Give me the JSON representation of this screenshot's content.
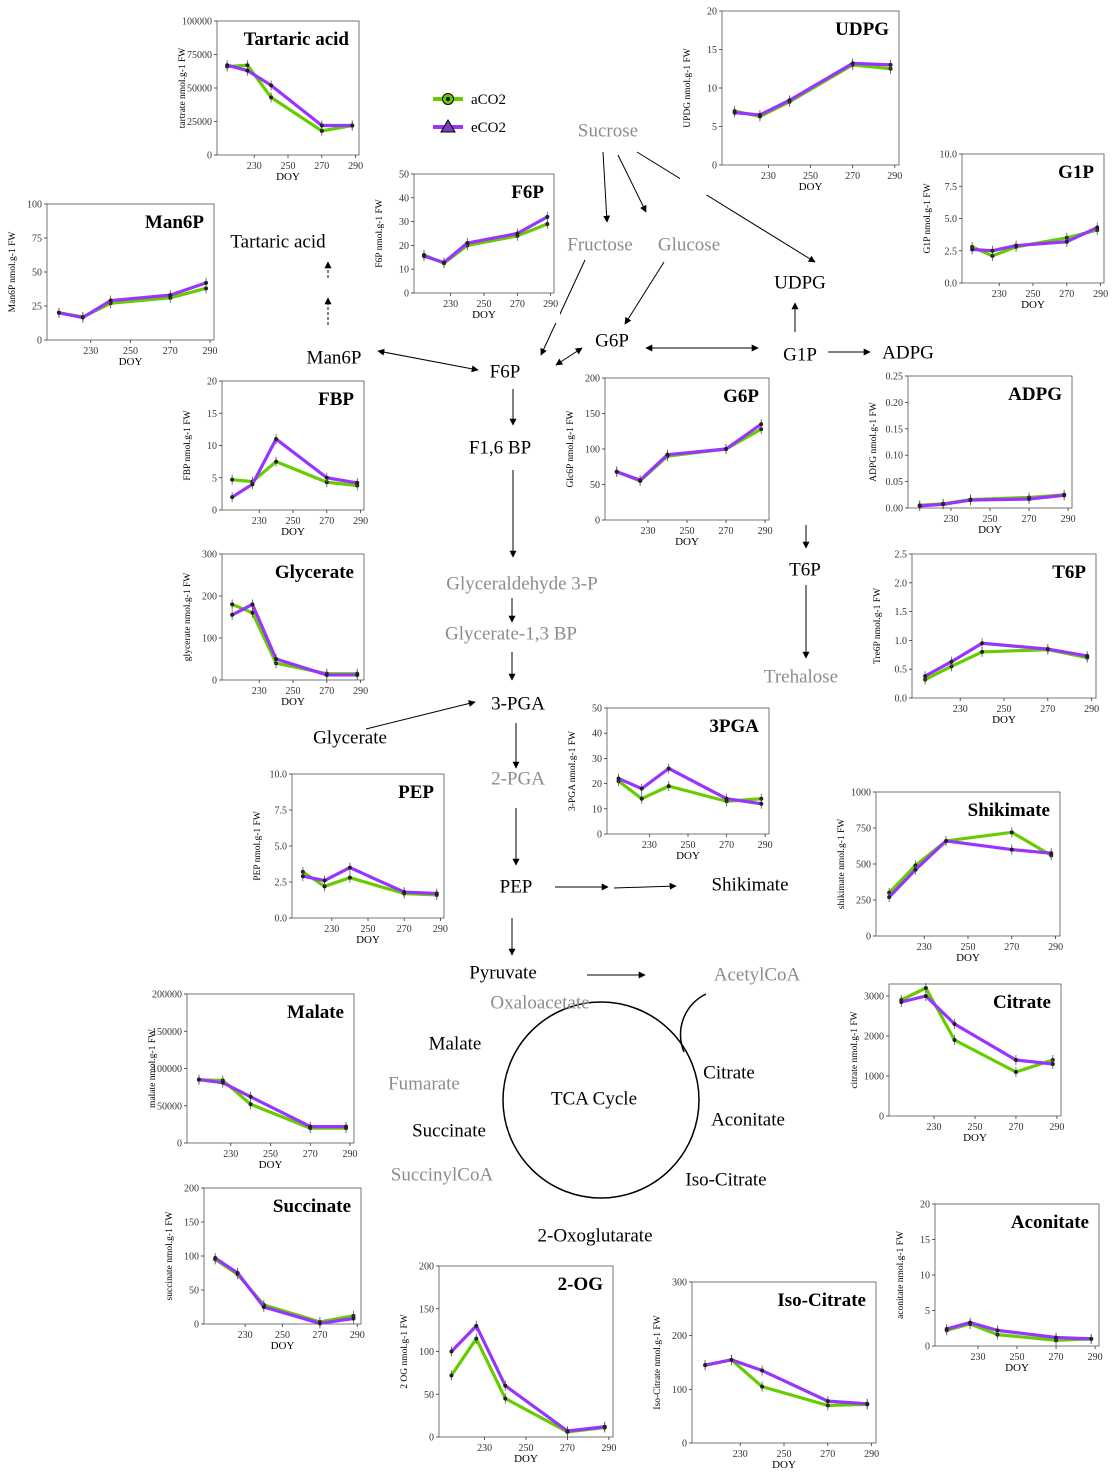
{
  "colors": {
    "aCO2": "#66cc00",
    "eCO2": "#9933ff",
    "dark_text": "#000000",
    "grey_text": "#8c8c8c"
  },
  "legend": [
    {
      "label": "aCO2",
      "color": "#66cc00",
      "marker": "circle"
    },
    {
      "label": "eCO2",
      "color": "#9933ff",
      "marker": "triangle"
    }
  ],
  "pathway": {
    "nodes": [
      {
        "id": "sucrose",
        "label": "Sucrose",
        "tone": "grey"
      },
      {
        "id": "fructose",
        "label": "Fructose",
        "tone": "grey"
      },
      {
        "id": "glucose",
        "label": "Glucose",
        "tone": "grey"
      },
      {
        "id": "udpg",
        "label": "UDPG",
        "tone": "dark"
      },
      {
        "id": "tartaric",
        "label": "Tartaric acid",
        "tone": "dark"
      },
      {
        "id": "man6p",
        "label": "Man6P",
        "tone": "dark"
      },
      {
        "id": "f6p",
        "label": "F6P",
        "tone": "dark"
      },
      {
        "id": "g6p",
        "label": "G6P",
        "tone": "dark"
      },
      {
        "id": "g1p",
        "label": "G1P",
        "tone": "dark"
      },
      {
        "id": "adpg",
        "label": "ADPG",
        "tone": "dark"
      },
      {
        "id": "f16bp",
        "label": "F1,6 BP",
        "tone": "dark"
      },
      {
        "id": "t6p",
        "label": "T6P",
        "tone": "dark"
      },
      {
        "id": "trehalose",
        "label": "Trehalose",
        "tone": "grey"
      },
      {
        "id": "g3p",
        "label": "Glyceraldehyde 3-P",
        "tone": "grey"
      },
      {
        "id": "g13bp",
        "label": "Glycerate-1,3 BP",
        "tone": "grey"
      },
      {
        "id": "pga3",
        "label": "3-PGA",
        "tone": "dark"
      },
      {
        "id": "glycerate",
        "label": "Glycerate",
        "tone": "dark"
      },
      {
        "id": "pga2",
        "label": "2-PGA",
        "tone": "grey"
      },
      {
        "id": "pep",
        "label": "PEP",
        "tone": "dark"
      },
      {
        "id": "shikimate",
        "label": "Shikimate",
        "tone": "dark"
      },
      {
        "id": "pyruvate",
        "label": "Pyruvate",
        "tone": "dark"
      },
      {
        "id": "acetylcoa",
        "label": "AcetylCoA",
        "tone": "grey"
      },
      {
        "id": "oxaloacetate",
        "label": "Oxaloacetate",
        "tone": "grey"
      },
      {
        "id": "malate",
        "label": "Malate",
        "tone": "dark"
      },
      {
        "id": "fumarate",
        "label": "Fumarate",
        "tone": "grey"
      },
      {
        "id": "tca",
        "label": "TCA Cycle",
        "tone": "dark"
      },
      {
        "id": "citrate",
        "label": "Citrate",
        "tone": "dark"
      },
      {
        "id": "aconitate",
        "label": "Aconitate",
        "tone": "dark"
      },
      {
        "id": "succinate",
        "label": "Succinate",
        "tone": "dark"
      },
      {
        "id": "succinylcoa",
        "label": "SuccinylCoA",
        "tone": "grey"
      },
      {
        "id": "isocitrate",
        "label": "Iso-Citrate",
        "tone": "dark"
      },
      {
        "id": "oxoglutarate",
        "label": "2-Oxoglutarate",
        "tone": "dark"
      }
    ]
  },
  "chart_data": [
    {
      "id": "tartaric",
      "type": "line",
      "title": "Tartaric acid",
      "ylabel": "tartrate nmol.g-1 FW",
      "xlabel": "DOY",
      "x": [
        214,
        226,
        240,
        270,
        288
      ],
      "xticks": [
        230,
        250,
        270,
        290
      ],
      "xlim": [
        208,
        292
      ],
      "yticks": [
        0,
        25000,
        50000,
        75000,
        100000
      ],
      "ylim": [
        0,
        100000
      ],
      "series": [
        {
          "name": "aCO2",
          "values": [
            66000,
            67000,
            43000,
            18000,
            22000
          ]
        },
        {
          "name": "eCO2",
          "values": [
            67000,
            63000,
            52000,
            22000,
            22000
          ]
        }
      ]
    },
    {
      "id": "udpg",
      "type": "line",
      "title": "UDPG",
      "ylabel": "UPDG nmol.g-1 FW",
      "xlabel": "DOY",
      "x": [
        214,
        226,
        240,
        270,
        288
      ],
      "xticks": [
        230,
        250,
        270,
        290
      ],
      "xlim": [
        208,
        292
      ],
      "yticks": [
        0,
        5,
        10,
        15,
        20
      ],
      "ylim": [
        0,
        20
      ],
      "series": [
        {
          "name": "aCO2",
          "values": [
            7,
            6.3,
            8.2,
            13,
            12.5
          ]
        },
        {
          "name": "eCO2",
          "values": [
            6.8,
            6.5,
            8.4,
            13.2,
            13
          ]
        }
      ]
    },
    {
      "id": "f6p",
      "type": "line",
      "title": "F6P",
      "ylabel": "F6P nmol.g-1 FW",
      "xlabel": "DOY",
      "x": [
        214,
        226,
        240,
        270,
        288
      ],
      "xticks": [
        230,
        250,
        270,
        290
      ],
      "xlim": [
        208,
        292
      ],
      "yticks": [
        0,
        10,
        20,
        30,
        40,
        50
      ],
      "ylim": [
        0,
        50
      ],
      "series": [
        {
          "name": "aCO2",
          "values": [
            16,
            12.5,
            20,
            24,
            29
          ]
        },
        {
          "name": "eCO2",
          "values": [
            15.5,
            12.8,
            21,
            25,
            32
          ]
        }
      ]
    },
    {
      "id": "g1p",
      "type": "line",
      "title": "G1P",
      "ylabel": "G1P nmol.g-1 FW",
      "xlabel": "DOY",
      "x": [
        214,
        226,
        240,
        270,
        288
      ],
      "xticks": [
        230,
        250,
        270,
        290
      ],
      "xlim": [
        208,
        292
      ],
      "yticks": [
        0.0,
        2.5,
        5.0,
        7.5,
        10.0
      ],
      "ylim": [
        0,
        10
      ],
      "series": [
        {
          "name": "aCO2",
          "values": [
            2.8,
            2.1,
            2.8,
            3.5,
            4.1
          ]
        },
        {
          "name": "eCO2",
          "values": [
            2.6,
            2.5,
            2.9,
            3.2,
            4.3
          ]
        }
      ]
    },
    {
      "id": "man6p",
      "type": "line",
      "title": "Man6P",
      "ylabel": "Man6P nmol.g-1 FW",
      "xlabel": "DOY",
      "x": [
        214,
        226,
        240,
        270,
        288
      ],
      "xticks": [
        230,
        250,
        270,
        290
      ],
      "xlim": [
        208,
        292
      ],
      "yticks": [
        0,
        25,
        50,
        75,
        100
      ],
      "ylim": [
        0,
        100
      ],
      "series": [
        {
          "name": "aCO2",
          "values": [
            20,
            17,
            27,
            31,
            38
          ]
        },
        {
          "name": "eCO2",
          "values": [
            20,
            16.5,
            29,
            33,
            42
          ]
        }
      ]
    },
    {
      "id": "fbp",
      "type": "line",
      "title": "FBP",
      "ylabel": "FBP nmol.g-1 FW",
      "xlabel": "DOY",
      "x": [
        214,
        226,
        240,
        270,
        288
      ],
      "xticks": [
        230,
        250,
        270,
        290
      ],
      "xlim": [
        208,
        292
      ],
      "yticks": [
        0,
        5,
        10,
        15,
        20
      ],
      "ylim": [
        0,
        20
      ],
      "series": [
        {
          "name": "aCO2",
          "values": [
            4.7,
            4.4,
            7.5,
            4.3,
            3.8
          ]
        },
        {
          "name": "eCO2",
          "values": [
            2.0,
            4.0,
            11.0,
            5.0,
            4.2
          ]
        }
      ]
    },
    {
      "id": "g6p",
      "type": "line",
      "title": "G6P",
      "ylabel": "Glc6P nmol.g-1 FW",
      "xlabel": "DOY",
      "x": [
        214,
        226,
        240,
        270,
        288
      ],
      "xticks": [
        230,
        250,
        270,
        290
      ],
      "xlim": [
        208,
        292
      ],
      "yticks": [
        0,
        50,
        100,
        150,
        200
      ],
      "ylim": [
        0,
        200
      ],
      "series": [
        {
          "name": "aCO2",
          "values": [
            68,
            55,
            90,
            100,
            128
          ]
        },
        {
          "name": "eCO2",
          "values": [
            68,
            56,
            92,
            100,
            135
          ]
        }
      ]
    },
    {
      "id": "adpg",
      "type": "line",
      "title": "ADPG",
      "ylabel": "ADPG nmol.g-1 FW",
      "xlabel": "DOY",
      "x": [
        214,
        226,
        240,
        270,
        288
      ],
      "xticks": [
        230,
        250,
        270,
        290
      ],
      "xlim": [
        208,
        292
      ],
      "yticks": [
        0.0,
        0.05,
        0.1,
        0.15,
        0.2,
        0.25
      ],
      "ylim": [
        0,
        0.25
      ],
      "series": [
        {
          "name": "aCO2",
          "values": [
            0.005,
            0.008,
            0.016,
            0.02,
            0.025
          ]
        },
        {
          "name": "eCO2",
          "values": [
            0.004,
            0.007,
            0.015,
            0.017,
            0.024
          ]
        }
      ]
    },
    {
      "id": "glycerate",
      "type": "line",
      "title": "Glycerate",
      "ylabel": "glycerate nmol.g-1 FW",
      "xlabel": "DOY",
      "x": [
        214,
        226,
        240,
        270,
        288
      ],
      "xticks": [
        230,
        250,
        270,
        290
      ],
      "xlim": [
        208,
        292
      ],
      "yticks": [
        0,
        100,
        200,
        300
      ],
      "ylim": [
        0,
        300
      ],
      "series": [
        {
          "name": "aCO2",
          "values": [
            180,
            160,
            40,
            15,
            15
          ]
        },
        {
          "name": "eCO2",
          "values": [
            155,
            180,
            50,
            12,
            12
          ]
        }
      ]
    },
    {
      "id": "t6p",
      "type": "line",
      "title": "T6P",
      "ylabel": "Tre6P nmol.g-1 FW",
      "xlabel": "DOY",
      "x": [
        214,
        226,
        240,
        270,
        288
      ],
      "xticks": [
        230,
        250,
        270,
        290
      ],
      "xlim": [
        208,
        292
      ],
      "yticks": [
        0.0,
        0.5,
        1.0,
        1.5,
        2.0,
        2.5
      ],
      "ylim": [
        0,
        2.5
      ],
      "series": [
        {
          "name": "aCO2",
          "values": [
            0.32,
            0.55,
            0.8,
            0.84,
            0.7
          ]
        },
        {
          "name": "eCO2",
          "values": [
            0.38,
            0.63,
            0.95,
            0.85,
            0.73
          ]
        }
      ]
    },
    {
      "id": "pep",
      "type": "line",
      "title": "PEP",
      "ylabel": "PEP nmol.g-1 FW",
      "xlabel": "DOY",
      "x": [
        214,
        226,
        240,
        270,
        288
      ],
      "xticks": [
        230,
        250,
        270,
        290
      ],
      "xlim": [
        208,
        292
      ],
      "yticks": [
        0.0,
        2.5,
        5.0,
        7.5,
        10.0
      ],
      "ylim": [
        0,
        10
      ],
      "series": [
        {
          "name": "aCO2",
          "values": [
            3.2,
            2.2,
            2.8,
            1.7,
            1.6
          ]
        },
        {
          "name": "eCO2",
          "values": [
            2.9,
            2.6,
            3.5,
            1.8,
            1.7
          ]
        }
      ]
    },
    {
      "id": "pga3",
      "type": "line",
      "title": "3PGA",
      "ylabel": "3-PGA nmol.g-1 FW",
      "xlabel": "DOY",
      "x": [
        214,
        226,
        240,
        270,
        288
      ],
      "xticks": [
        230,
        250,
        270,
        290
      ],
      "xlim": [
        208,
        292
      ],
      "yticks": [
        0,
        10,
        20,
        30,
        40,
        50
      ],
      "ylim": [
        0,
        50
      ],
      "series": [
        {
          "name": "aCO2",
          "values": [
            21,
            14,
            19,
            13,
            14
          ]
        },
        {
          "name": "eCO2",
          "values": [
            22,
            18,
            26,
            14,
            12
          ]
        }
      ]
    },
    {
      "id": "shikimate",
      "type": "line",
      "title": "Shikimate",
      "ylabel": "shikimate nmol.g-1 FW",
      "xlabel": "DOY",
      "x": [
        214,
        226,
        240,
        270,
        288
      ],
      "xticks": [
        230,
        250,
        270,
        290
      ],
      "xlim": [
        208,
        292
      ],
      "yticks": [
        0,
        250,
        500,
        750,
        1000
      ],
      "ylim": [
        0,
        1000
      ],
      "series": [
        {
          "name": "aCO2",
          "values": [
            300,
            490,
            660,
            720,
            560
          ]
        },
        {
          "name": "eCO2",
          "values": [
            270,
            460,
            660,
            600,
            575
          ]
        }
      ]
    },
    {
      "id": "malate",
      "type": "line",
      "title": "Malate",
      "ylabel": "malate nmol.g-1 FW",
      "xlabel": "DOY",
      "x": [
        214,
        226,
        240,
        270,
        288
      ],
      "xticks": [
        230,
        250,
        270,
        290
      ],
      "xlim": [
        208,
        292
      ],
      "yticks": [
        0,
        50000,
        100000,
        150000,
        200000
      ],
      "ylim": [
        0,
        200000
      ],
      "series": [
        {
          "name": "aCO2",
          "values": [
            85000,
            84000,
            52000,
            20000,
            20000
          ]
        },
        {
          "name": "eCO2",
          "values": [
            85000,
            81000,
            62000,
            22000,
            22000
          ]
        }
      ]
    },
    {
      "id": "citrate",
      "type": "line",
      "title": "Citrate",
      "ylabel": "citrate nmol.g-1 FW",
      "xlabel": "DOY",
      "x": [
        214,
        226,
        240,
        270,
        288
      ],
      "xticks": [
        230,
        250,
        270,
        290
      ],
      "xlim": [
        208,
        292
      ],
      "yticks": [
        0,
        1000,
        2000,
        3000
      ],
      "ylim": [
        0,
        3300
      ],
      "series": [
        {
          "name": "aCO2",
          "values": [
            2900,
            3200,
            1900,
            1100,
            1400
          ]
        },
        {
          "name": "eCO2",
          "values": [
            2850,
            3000,
            2300,
            1400,
            1300
          ]
        }
      ]
    },
    {
      "id": "succinate",
      "type": "line",
      "title": "Succinate",
      "ylabel": "succinate nmol.g-1 FW",
      "xlabel": "DOY",
      "x": [
        214,
        226,
        240,
        270,
        288
      ],
      "xticks": [
        230,
        250,
        270,
        290
      ],
      "xlim": [
        208,
        292
      ],
      "yticks": [
        0,
        50,
        100,
        150,
        200
      ],
      "ylim": [
        0,
        200
      ],
      "series": [
        {
          "name": "aCO2",
          "values": [
            95,
            73,
            28,
            3,
            12
          ]
        },
        {
          "name": "eCO2",
          "values": [
            97,
            75,
            25,
            1,
            8
          ]
        }
      ]
    },
    {
      "id": "oxoglutarate",
      "type": "line",
      "title": "2-OG",
      "ylabel": "2 OG nmol.g-1 FW",
      "xlabel": "DOY",
      "x": [
        214,
        226,
        240,
        270,
        288
      ],
      "xticks": [
        230,
        250,
        270,
        290
      ],
      "xlim": [
        208,
        292
      ],
      "yticks": [
        0,
        50,
        100,
        150,
        200
      ],
      "ylim": [
        0,
        200
      ],
      "series": [
        {
          "name": "aCO2",
          "values": [
            72,
            115,
            45,
            6,
            11
          ]
        },
        {
          "name": "eCO2",
          "values": [
            100,
            130,
            60,
            7,
            12
          ]
        }
      ]
    },
    {
      "id": "isocitrate",
      "type": "line",
      "title": "Iso-Citrate",
      "ylabel": "Iso-Citrate nmol.g-1 FW",
      "xlabel": "DOY",
      "x": [
        214,
        226,
        240,
        270,
        288
      ],
      "xticks": [
        230,
        250,
        270,
        290
      ],
      "xlim": [
        208,
        292
      ],
      "yticks": [
        0,
        100,
        200,
        300
      ],
      "ylim": [
        0,
        300
      ],
      "series": [
        {
          "name": "aCO2",
          "values": [
            145,
            155,
            105,
            70,
            72
          ]
        },
        {
          "name": "eCO2",
          "values": [
            145,
            155,
            135,
            78,
            73
          ]
        }
      ]
    },
    {
      "id": "aconitate",
      "type": "line",
      "title": "Aconitate",
      "ylabel": "aconitate nmol.g-1 FW",
      "xlabel": "DOY",
      "x": [
        214,
        226,
        240,
        270,
        288
      ],
      "xticks": [
        230,
        250,
        270,
        290
      ],
      "xlim": [
        208,
        292
      ],
      "yticks": [
        0,
        5,
        10,
        15,
        20
      ],
      "ylim": [
        0,
        20
      ],
      "series": [
        {
          "name": "aCO2",
          "values": [
            2.2,
            3.1,
            1.6,
            0.8,
            1.0
          ]
        },
        {
          "name": "eCO2",
          "values": [
            2.4,
            3.3,
            2.2,
            1.2,
            1.0
          ]
        }
      ]
    }
  ]
}
